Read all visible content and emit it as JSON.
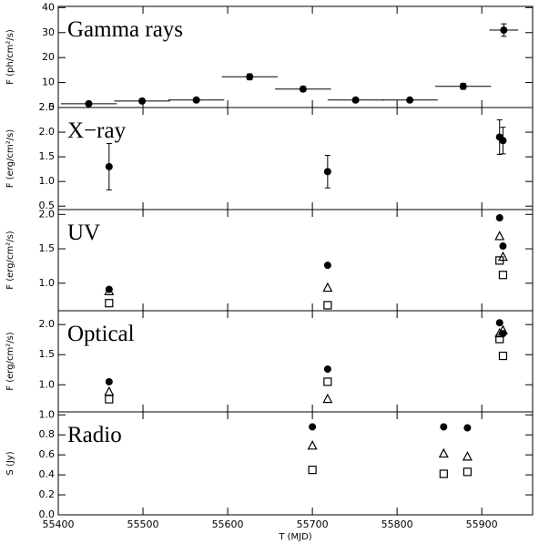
{
  "chart_data": [
    {
      "type": "scatter",
      "title": "Gamma rays",
      "ylabel": "F (ph/cm²/s)",
      "xlim": [
        55400,
        55960
      ],
      "ylim": [
        0,
        40.5
      ],
      "yticks": [
        0,
        10,
        20,
        30,
        40
      ],
      "xticks": [
        55400,
        55500,
        55600,
        55700,
        55800,
        55900
      ],
      "x": [
        55436,
        55499,
        55563,
        55626,
        55689,
        55751,
        55815,
        55878,
        55926
      ],
      "xerr": [
        33,
        33,
        33,
        33,
        33,
        33,
        33,
        33,
        17
      ],
      "series": [
        {
          "marker": "circle",
          "color": "#000000",
          "values": [
            1.5,
            2.6,
            3,
            12.3,
            7.4,
            3,
            3,
            8.5,
            31
          ],
          "yerr": [
            0.5,
            0.5,
            0.6,
            1.2,
            1,
            0.6,
            0.6,
            1.2,
            2.5
          ]
        }
      ]
    },
    {
      "type": "scatter",
      "title": "X−ray",
      "ylabel": "F (erg/cm²/s)",
      "xlim": [
        55400,
        55960
      ],
      "ylim": [
        0.43,
        2.5
      ],
      "yticks": [
        {
          "value": 0.5,
          "label": "0.5"
        },
        {
          "value": 1,
          "label": "1.0"
        },
        {
          "value": 1.5,
          "label": "1.5"
        },
        {
          "value": 2,
          "label": "2.0"
        },
        {
          "value": 2.5,
          "label": "2.5"
        }
      ],
      "xticks": [
        55400,
        55500,
        55600,
        55700,
        55800,
        55900
      ],
      "x": [
        55460,
        55718,
        55921,
        55925
      ],
      "series": [
        {
          "marker": "circle",
          "color": "#000000",
          "values": [
            1.3,
            1.2,
            1.9,
            1.83
          ],
          "yerr": [
            0.47,
            0.33,
            0.35,
            0.27
          ]
        }
      ]
    },
    {
      "type": "scatter",
      "title": "UV",
      "ylabel": "F (erg/cm²/s)",
      "xlim": [
        55400,
        55960
      ],
      "ylim": [
        0.6,
        2.07
      ],
      "yticks": [
        {
          "value": 1,
          "label": "1.0"
        },
        {
          "value": 1.5,
          "label": "1.5"
        },
        {
          "value": 2,
          "label": "2.0"
        }
      ],
      "xticks": [
        55400,
        55500,
        55600,
        55700,
        55800,
        55900
      ],
      "x": [
        55460,
        55718,
        55921,
        55925
      ],
      "series": [
        {
          "marker": "circle",
          "color": "#000000",
          "values": [
            0.91,
            1.26,
            1.95,
            1.54
          ]
        },
        {
          "marker": "triangle",
          "color": "#000000",
          "values": [
            0.88,
            0.93,
            1.68,
            1.38
          ]
        },
        {
          "marker": "square",
          "color": "#000000",
          "values": [
            0.71,
            0.68,
            1.33,
            1.12
          ]
        }
      ]
    },
    {
      "type": "scatter",
      "title": "Optical",
      "ylabel": "F (erg/cm²/s)",
      "xlim": [
        55400,
        55960
      ],
      "ylim": [
        0.55,
        2.23
      ],
      "yticks": [
        {
          "value": 1,
          "label": "1.0"
        },
        {
          "value": 1.5,
          "label": "1.5"
        },
        {
          "value": 2,
          "label": "2.0"
        }
      ],
      "xticks": [
        55400,
        55500,
        55600,
        55700,
        55800,
        55900
      ],
      "x": [
        55460,
        55718,
        55921,
        55925
      ],
      "series": [
        {
          "marker": "circle",
          "color": "#000000",
          "values": [
            1.05,
            1.26,
            2.03,
            1.85
          ]
        },
        {
          "marker": "triangle",
          "color": "#000000",
          "values": [
            0.88,
            0.76,
            1.85,
            1.9
          ]
        },
        {
          "marker": "square",
          "color": "#000000",
          "values": [
            0.76,
            1.05,
            1.76,
            1.48
          ]
        }
      ]
    },
    {
      "type": "scatter",
      "title": "Radio",
      "ylabel": "S (Jy)",
      "xlabel": "T (MJD)",
      "xlim": [
        55400,
        55960
      ],
      "ylim": [
        0,
        1.03
      ],
      "yticks": [
        {
          "value": 0,
          "label": "0.0"
        },
        0.2,
        0.4,
        0.6,
        0.8,
        {
          "value": 1,
          "label": "1.0"
        }
      ],
      "xticks": [
        55400,
        55500,
        55600,
        55700,
        55800,
        55900
      ],
      "x": [
        55700,
        55855,
        55883
      ],
      "series": [
        {
          "marker": "circle",
          "color": "#000000",
          "values": [
            0.88,
            0.88,
            0.87
          ]
        },
        {
          "marker": "triangle",
          "color": "#000000",
          "values": [
            0.69,
            0.61,
            0.58
          ]
        },
        {
          "marker": "square",
          "color": "#000000",
          "values": [
            0.45,
            0.41,
            0.43
          ]
        }
      ]
    }
  ]
}
